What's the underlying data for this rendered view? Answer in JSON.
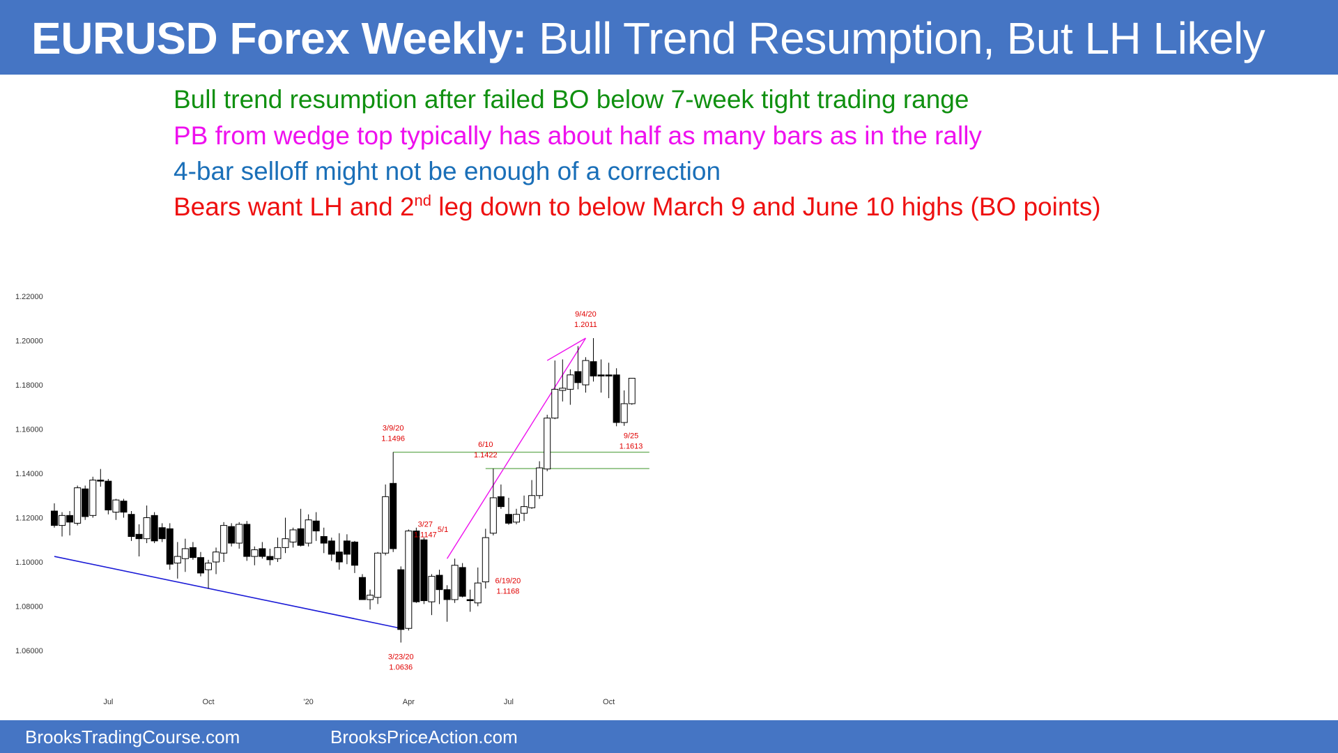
{
  "header": {
    "title_bold": "EURUSD Forex Weekly:",
    "title_rest": " Bull Trend Resumption, But LH Likely"
  },
  "notes": [
    {
      "text": "Bull trend resumption after failed BO below 7-week tight trading range",
      "color": "#109010"
    },
    {
      "text": "PB from wedge top typically has about half as many bars as in the rally",
      "color": "#ee10ee"
    },
    {
      "text": "4-bar selloff might not be enough of a correction",
      "color": "#1a6fb8"
    },
    {
      "text_pre": "Bears want LH and 2",
      "text_sup": "nd",
      "text_post": " leg down to below March 9 and June 10 highs (BO points)",
      "color": "#ee1010"
    }
  ],
  "footer": {
    "left": "BrooksTradingCourse.com",
    "right": "BrooksPriceAction.com"
  },
  "chart_data": {
    "type": "candlestick",
    "title": "",
    "xlabel": "",
    "ylabel": "",
    "ylim": [
      1.045,
      1.225
    ],
    "y_ticks": [
      1.06,
      1.08,
      1.1,
      1.12,
      1.14,
      1.16,
      1.18,
      1.2,
      1.22
    ],
    "y_tick_labels": [
      "1.06000",
      "1.08000",
      "1.10000",
      "1.12000",
      "1.14000",
      "1.16000",
      "1.18000",
      "1.20000",
      "1.22000"
    ],
    "x_ticks": [
      {
        "label": "Jul",
        "bar": 7
      },
      {
        "label": "Oct",
        "bar": 20
      },
      {
        "label": "'20",
        "bar": 33
      },
      {
        "label": "Apr",
        "bar": 46
      },
      {
        "label": "Jul",
        "bar": 59
      },
      {
        "label": "Oct",
        "bar": 72
      }
    ],
    "grid": false,
    "up_color": "#ffffff",
    "down_color": "#000000",
    "candles": [
      {
        "o": 1.123,
        "h": 1.1265,
        "l": 1.1155,
        "c": 1.1165
      },
      {
        "o": 1.1165,
        "h": 1.1225,
        "l": 1.1115,
        "c": 1.121
      },
      {
        "o": 1.121,
        "h": 1.123,
        "l": 1.112,
        "c": 1.118
      },
      {
        "o": 1.1175,
        "h": 1.1345,
        "l": 1.1165,
        "c": 1.1335
      },
      {
        "o": 1.133,
        "h": 1.1345,
        "l": 1.119,
        "c": 1.1205
      },
      {
        "o": 1.121,
        "h": 1.1385,
        "l": 1.12,
        "c": 1.137
      },
      {
        "o": 1.137,
        "h": 1.142,
        "l": 1.134,
        "c": 1.1365
      },
      {
        "o": 1.1365,
        "h": 1.1375,
        "l": 1.1215,
        "c": 1.1235
      },
      {
        "o": 1.1225,
        "h": 1.1285,
        "l": 1.119,
        "c": 1.128
      },
      {
        "o": 1.1275,
        "h": 1.1285,
        "l": 1.12,
        "c": 1.1225
      },
      {
        "o": 1.1215,
        "h": 1.123,
        "l": 1.1095,
        "c": 1.1115
      },
      {
        "o": 1.1125,
        "h": 1.117,
        "l": 1.1025,
        "c": 1.1105
      },
      {
        "o": 1.1105,
        "h": 1.1255,
        "l": 1.1085,
        "c": 1.12
      },
      {
        "o": 1.121,
        "h": 1.1225,
        "l": 1.1085,
        "c": 1.1095
      },
      {
        "o": 1.1155,
        "h": 1.1175,
        "l": 1.109,
        "c": 1.1105
      },
      {
        "o": 1.115,
        "h": 1.1175,
        "l": 1.0965,
        "c": 1.099
      },
      {
        "o": 1.0995,
        "h": 1.109,
        "l": 1.0925,
        "c": 1.1025
      },
      {
        "o": 1.1015,
        "h": 1.1105,
        "l": 1.0955,
        "c": 1.106
      },
      {
        "o": 1.1065,
        "h": 1.109,
        "l": 1.101,
        "c": 1.102
      },
      {
        "o": 1.102,
        "h": 1.1045,
        "l": 1.0935,
        "c": 1.095
      },
      {
        "o": 1.0965,
        "h": 1.101,
        "l": 1.088,
        "c": 1.0995
      },
      {
        "o": 1.1,
        "h": 1.1065,
        "l": 1.0945,
        "c": 1.1045
      },
      {
        "o": 1.104,
        "h": 1.118,
        "l": 1.1,
        "c": 1.1165
      },
      {
        "o": 1.116,
        "h": 1.1175,
        "l": 1.107,
        "c": 1.1085
      },
      {
        "o": 1.1085,
        "h": 1.118,
        "l": 1.106,
        "c": 1.117
      },
      {
        "o": 1.117,
        "h": 1.1185,
        "l": 1.1005,
        "c": 1.1025
      },
      {
        "o": 1.1025,
        "h": 1.107,
        "l": 1.0985,
        "c": 1.1055
      },
      {
        "o": 1.106,
        "h": 1.109,
        "l": 1.1015,
        "c": 1.1025
      },
      {
        "o": 1.1025,
        "h": 1.106,
        "l": 1.0985,
        "c": 1.101
      },
      {
        "o": 1.1015,
        "h": 1.111,
        "l": 1.1,
        "c": 1.1065
      },
      {
        "o": 1.1065,
        "h": 1.12,
        "l": 1.104,
        "c": 1.1105
      },
      {
        "o": 1.109,
        "h": 1.1155,
        "l": 1.1065,
        "c": 1.1145
      },
      {
        "o": 1.115,
        "h": 1.124,
        "l": 1.107,
        "c": 1.1075
      },
      {
        "o": 1.1085,
        "h": 1.1215,
        "l": 1.107,
        "c": 1.119
      },
      {
        "o": 1.1185,
        "h": 1.1225,
        "l": 1.1095,
        "c": 1.114
      },
      {
        "o": 1.1115,
        "h": 1.1155,
        "l": 1.104,
        "c": 1.1085
      },
      {
        "o": 1.1095,
        "h": 1.111,
        "l": 1.1005,
        "c": 1.1035
      },
      {
        "o": 1.1045,
        "h": 1.113,
        "l": 1.0965,
        "c": 1.1
      },
      {
        "o": 1.1095,
        "h": 1.1125,
        "l": 1.099,
        "c": 1.1035
      },
      {
        "o": 1.109,
        "h": 1.1095,
        "l": 1.095,
        "c": 1.0985
      },
      {
        "o": 1.093,
        "h": 1.0945,
        "l": 1.083,
        "c": 1.083
      },
      {
        "o": 1.083,
        "h": 1.0875,
        "l": 1.0785,
        "c": 1.085
      },
      {
        "o": 1.084,
        "h": 1.1045,
        "l": 1.081,
        "c": 1.104
      },
      {
        "o": 1.104,
        "h": 1.135,
        "l": 1.103,
        "c": 1.1295
      },
      {
        "o": 1.1355,
        "h": 1.1496,
        "l": 1.1045,
        "c": 1.106
      },
      {
        "o": 1.0965,
        "h": 1.098,
        "l": 1.0636,
        "c": 1.0695
      },
      {
        "o": 1.07,
        "h": 1.1147,
        "l": 1.069,
        "c": 1.114
      },
      {
        "o": 1.114,
        "h": 1.1155,
        "l": 1.0815,
        "c": 1.082
      },
      {
        "o": 1.11,
        "h": 1.111,
        "l": 1.081,
        "c": 1.0825
      },
      {
        "o": 1.082,
        "h": 1.0945,
        "l": 1.076,
        "c": 1.0935
      },
      {
        "o": 1.094,
        "h": 1.0965,
        "l": 1.081,
        "c": 1.0875
      },
      {
        "o": 1.0875,
        "h": 1.0895,
        "l": 1.073,
        "c": 1.083
      },
      {
        "o": 1.083,
        "h": 1.1015,
        "l": 1.0815,
        "c": 1.0985
      },
      {
        "o": 1.0975,
        "h": 1.0995,
        "l": 1.084,
        "c": 1.0845
      },
      {
        "o": 1.083,
        "h": 1.0875,
        "l": 1.0775,
        "c": 1.0825
      },
      {
        "o": 1.0815,
        "h": 1.0975,
        "l": 1.08,
        "c": 1.0905
      },
      {
        "o": 1.091,
        "h": 1.115,
        "l": 1.088,
        "c": 1.111
      },
      {
        "o": 1.113,
        "h": 1.1422,
        "l": 1.112,
        "c": 1.129
      },
      {
        "o": 1.1295,
        "h": 1.135,
        "l": 1.124,
        "c": 1.125
      },
      {
        "o": 1.1215,
        "h": 1.129,
        "l": 1.1168,
        "c": 1.1175
      },
      {
        "o": 1.118,
        "h": 1.124,
        "l": 1.117,
        "c": 1.1215
      },
      {
        "o": 1.122,
        "h": 1.13,
        "l": 1.1185,
        "c": 1.125
      },
      {
        "o": 1.1245,
        "h": 1.137,
        "l": 1.124,
        "c": 1.13
      },
      {
        "o": 1.13,
        "h": 1.1455,
        "l": 1.1285,
        "c": 1.1425
      },
      {
        "o": 1.142,
        "h": 1.1665,
        "l": 1.141,
        "c": 1.165
      },
      {
        "o": 1.165,
        "h": 1.191,
        "l": 1.1645,
        "c": 1.178
      },
      {
        "o": 1.1775,
        "h": 1.1915,
        "l": 1.1725,
        "c": 1.1785
      },
      {
        "o": 1.178,
        "h": 1.187,
        "l": 1.171,
        "c": 1.1845
      },
      {
        "o": 1.186,
        "h": 1.1975,
        "l": 1.178,
        "c": 1.181
      },
      {
        "o": 1.18,
        "h": 1.1925,
        "l": 1.1765,
        "c": 1.191
      },
      {
        "o": 1.1905,
        "h": 1.2011,
        "l": 1.1815,
        "c": 1.184
      },
      {
        "o": 1.1845,
        "h": 1.1915,
        "l": 1.1765,
        "c": 1.184
      },
      {
        "o": 1.1845,
        "h": 1.19,
        "l": 1.174,
        "c": 1.184
      },
      {
        "o": 1.1845,
        "h": 1.1875,
        "l": 1.1613,
        "c": 1.163
      },
      {
        "o": 1.163,
        "h": 1.1775,
        "l": 1.1615,
        "c": 1.1715
      },
      {
        "o": 1.1715,
        "h": 1.183,
        "l": 1.171,
        "c": 1.183
      }
    ],
    "annotations": [
      {
        "lines": [
          "3/9/20",
          "1.1496"
        ],
        "bar": 44,
        "price": 1.1496,
        "pos": "above",
        "color": "#e00000"
      },
      {
        "lines": [
          "3/23/20",
          "1.0636"
        ],
        "bar": 45,
        "price": 1.0636,
        "pos": "below",
        "color": "#e00000"
      },
      {
        "lines": [
          "3/27",
          "1.1147"
        ],
        "bar": 46,
        "price": 1.1147,
        "pos": "right-mid",
        "color": "#e00000"
      },
      {
        "lines": [
          "5/1"
        ],
        "bar": 51,
        "price": 1.1015,
        "pos": "above-left",
        "color": "#e00000"
      },
      {
        "lines": [
          "6/10",
          "1.1422"
        ],
        "bar": 56,
        "price": 1.1422,
        "pos": "above",
        "color": "#e00000"
      },
      {
        "lines": [
          "6/19/20",
          "1.1168"
        ],
        "bar": 58,
        "price": 1.1168,
        "pos": "below-right",
        "color": "#e00000"
      },
      {
        "lines": [
          "9/4/20",
          "1.2011"
        ],
        "bar": 69,
        "price": 1.2011,
        "pos": "above",
        "color": "#e00000"
      },
      {
        "lines": [
          "9/25",
          "1.1613"
        ],
        "bar": 72,
        "price": 1.1613,
        "pos": "below-right",
        "color": "#e00000"
      }
    ],
    "overlays": [
      {
        "name": "downtrend-line",
        "type": "line",
        "color": "#1a1ad6",
        "from": {
          "bar": 0,
          "price": 1.1025
        },
        "to": {
          "bar": 45,
          "price": 1.07
        }
      },
      {
        "name": "wedge-line-upper",
        "type": "line",
        "color": "#ee10ee",
        "from": {
          "bar": 64,
          "price": 1.191
        },
        "to": {
          "bar": 69,
          "price": 1.2011
        }
      },
      {
        "name": "wedge-line-lower",
        "type": "line",
        "color": "#ee10ee",
        "from": {
          "bar": 51,
          "price": 1.1015
        },
        "to": {
          "bar": 69,
          "price": 1.2011
        }
      },
      {
        "name": "march-9-high-line",
        "type": "line",
        "color": "#70b060",
        "from": {
          "bar": 44,
          "price": 1.1496
        },
        "to": {
          "bar": 76,
          "price": 1.1496
        }
      },
      {
        "name": "june-10-high-line",
        "type": "line",
        "color": "#70b060",
        "from": {
          "bar": 56,
          "price": 1.1422
        },
        "to": {
          "bar": 76,
          "price": 1.1422
        }
      }
    ]
  }
}
